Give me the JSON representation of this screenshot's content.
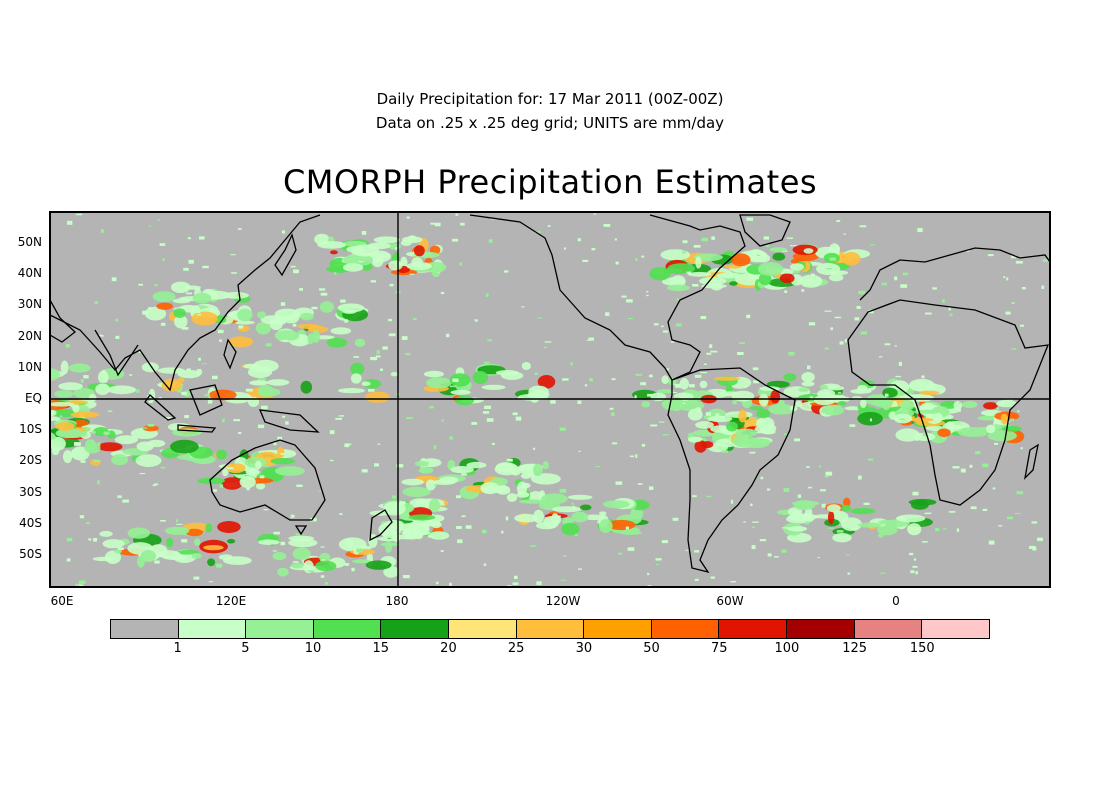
{
  "header": {
    "line1": "Daily Precipitation for: 17 Mar 2011 (00Z-00Z)",
    "line2": "Data on .25 x .25 deg grid; UNITS are mm/day",
    "title": "CMORPH Precipitation Estimates"
  },
  "map": {
    "lat_labels": [
      "50N",
      "40N",
      "30N",
      "20N",
      "10N",
      "EQ",
      "10S",
      "20S",
      "30S",
      "40S",
      "50S"
    ],
    "lon_labels": [
      "60E",
      "120E",
      "180",
      "120W",
      "60W",
      "0"
    ],
    "colors": {
      "background": "#b4b4b4",
      "coast": "#000000"
    }
  },
  "colorbar": {
    "colors": [
      "#b4b4b4",
      "#c8ffc8",
      "#96f096",
      "#50e050",
      "#16a216",
      "#ffe478",
      "#ffbe3c",
      "#ffa000",
      "#ff6000",
      "#e11400",
      "#a50000",
      "#e68282",
      "#ffc8c8"
    ],
    "labels": [
      "1",
      "5",
      "10",
      "15",
      "20",
      "25",
      "30",
      "50",
      "75",
      "100",
      "125",
      "150"
    ]
  }
}
